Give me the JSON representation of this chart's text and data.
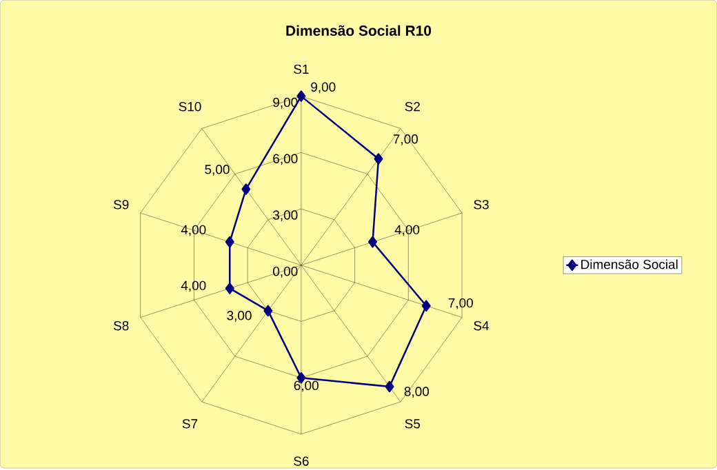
{
  "chart_data": {
    "type": "radar",
    "title": "Dimensão Social R10",
    "categories": [
      "S1",
      "S2",
      "S3",
      "S4",
      "S5",
      "S6",
      "S7",
      "S8",
      "S9",
      "S10"
    ],
    "series": [
      {
        "name": "Dimensão Social",
        "color": "#000080",
        "values": [
          9,
          7,
          4,
          7,
          8,
          6,
          3,
          4,
          4,
          5
        ],
        "value_labels": [
          "9,00",
          "7,00",
          "4,00",
          "7,00",
          "8,00",
          "6,00",
          "3,00",
          "4,00",
          "4,00",
          "5,00"
        ]
      }
    ],
    "ylim": [
      0,
      9
    ],
    "yticks": [
      {
        "value": 0,
        "label": "0,00"
      },
      {
        "value": 3,
        "label": "3,00"
      },
      {
        "value": 6,
        "label": "6,00"
      },
      {
        "value": 9,
        "label": "9,00"
      }
    ],
    "grid": true,
    "legend": "right",
    "marker": "diamond",
    "line_style": "solid"
  }
}
